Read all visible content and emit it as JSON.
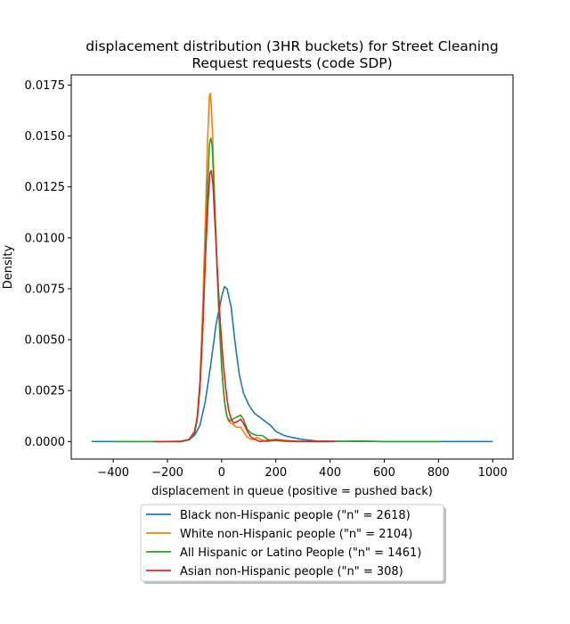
{
  "chart_data": {
    "type": "line",
    "title_lines": [
      "displacement distribution (3HR buckets) for Street Cleaning",
      "Request requests (code SDP)"
    ],
    "xlabel": "displacement in queue (positive = pushed back)",
    "ylabel": "Density",
    "xlim": [
      -555,
      1075
    ],
    "ylim": [
      -0.00086,
      0.018
    ],
    "x_ticks": [
      -400,
      -200,
      0,
      200,
      400,
      600,
      800,
      1000
    ],
    "x_tick_labels": [
      "−400",
      "−200",
      "0",
      "200",
      "400",
      "600",
      "800",
      "1000"
    ],
    "y_ticks": [
      0.0,
      0.0025,
      0.005,
      0.0075,
      0.01,
      0.0125,
      0.015,
      0.0175
    ],
    "y_tick_labels": [
      "0.0000",
      "0.0025",
      "0.0050",
      "0.0075",
      "0.0100",
      "0.0125",
      "0.0150",
      "0.0175"
    ],
    "grid": false,
    "legend_position": "bottom-center-outside",
    "series": [
      {
        "name": "Black non-Hispanic people (\"n\" = 2618)",
        "color": "#1f77b4",
        "points": [
          [
            -480,
            0
          ],
          [
            -200,
            0
          ],
          [
            -150,
            2e-05
          ],
          [
            -120,
            0.0001
          ],
          [
            -100,
            0.0003
          ],
          [
            -80,
            0.0008
          ],
          [
            -60,
            0.002
          ],
          [
            -40,
            0.0038
          ],
          [
            -20,
            0.0058
          ],
          [
            0,
            0.0071
          ],
          [
            10,
            0.0076
          ],
          [
            20,
            0.0075
          ],
          [
            35,
            0.0066
          ],
          [
            50,
            0.0048
          ],
          [
            65,
            0.0033
          ],
          [
            80,
            0.0024
          ],
          [
            100,
            0.0018
          ],
          [
            120,
            0.0014
          ],
          [
            150,
            0.0011
          ],
          [
            180,
            0.0008
          ],
          [
            200,
            0.0005
          ],
          [
            230,
            0.0003
          ],
          [
            260,
            0.0002
          ],
          [
            300,
            0.0001
          ],
          [
            350,
            3e-05
          ],
          [
            450,
            1e-05
          ],
          [
            600,
            0
          ],
          [
            1000,
            0
          ]
        ]
      },
      {
        "name": "White non-Hispanic people (\"n\" = 2104)",
        "color": "#ff7f0e",
        "points": [
          [
            -250,
            0
          ],
          [
            -150,
            0
          ],
          [
            -120,
            0.0001
          ],
          [
            -100,
            0.0004
          ],
          [
            -90,
            0.0012
          ],
          [
            -80,
            0.003
          ],
          [
            -70,
            0.0065
          ],
          [
            -60,
            0.011
          ],
          [
            -52,
            0.0148
          ],
          [
            -45,
            0.017
          ],
          [
            -42,
            0.0171
          ],
          [
            -38,
            0.0165
          ],
          [
            -32,
            0.0145
          ],
          [
            -25,
            0.0115
          ],
          [
            -15,
            0.008
          ],
          [
            -5,
            0.005
          ],
          [
            5,
            0.0028
          ],
          [
            15,
            0.0015
          ],
          [
            25,
            0.001
          ],
          [
            35,
            0.0009
          ],
          [
            45,
            0.0008
          ],
          [
            55,
            0.0007
          ],
          [
            70,
            0.0007
          ],
          [
            80,
            0.0005
          ],
          [
            95,
            0.0002
          ],
          [
            110,
            0.0001
          ],
          [
            120,
            0.0001
          ],
          [
            130,
            0.0002
          ],
          [
            145,
            0.0001
          ],
          [
            165,
            0
          ],
          [
            200,
            5e-05
          ],
          [
            230,
            0
          ],
          [
            400,
            0
          ]
        ]
      },
      {
        "name": "All Hispanic or Latino People (\"n\" = 1461)",
        "color": "#2ca02c",
        "points": [
          [
            -400,
            0
          ],
          [
            -150,
            0
          ],
          [
            -120,
            0.0001
          ],
          [
            -100,
            0.0004
          ],
          [
            -90,
            0.0011
          ],
          [
            -80,
            0.0026
          ],
          [
            -70,
            0.0055
          ],
          [
            -60,
            0.0092
          ],
          [
            -52,
            0.0125
          ],
          [
            -45,
            0.0146
          ],
          [
            -40,
            0.0149
          ],
          [
            -35,
            0.0145
          ],
          [
            -28,
            0.0125
          ],
          [
            -20,
            0.0095
          ],
          [
            -10,
            0.0062
          ],
          [
            0,
            0.0036
          ],
          [
            10,
            0.002
          ],
          [
            20,
            0.0012
          ],
          [
            30,
            0.001
          ],
          [
            40,
            0.0011
          ],
          [
            55,
            0.0012
          ],
          [
            70,
            0.0013
          ],
          [
            80,
            0.0011
          ],
          [
            95,
            0.0006
          ],
          [
            110,
            0.0004
          ],
          [
            130,
            0.0003
          ],
          [
            150,
            0.0003
          ],
          [
            170,
            0.0001
          ],
          [
            190,
            5e-05
          ],
          [
            220,
            5e-05
          ],
          [
            260,
            3e-05
          ],
          [
            330,
            0
          ],
          [
            400,
            0
          ],
          [
            500,
            3e-05
          ],
          [
            600,
            0
          ],
          [
            810,
            0
          ]
        ]
      },
      {
        "name": "Asian non-Hispanic people (\"n\" = 308)",
        "color": "#d62728",
        "points": [
          [
            -250,
            0
          ],
          [
            -150,
            0
          ],
          [
            -120,
            0.0001
          ],
          [
            -100,
            0.0005
          ],
          [
            -90,
            0.0012
          ],
          [
            -80,
            0.0028
          ],
          [
            -70,
            0.0055
          ],
          [
            -60,
            0.009
          ],
          [
            -50,
            0.0118
          ],
          [
            -43,
            0.0132
          ],
          [
            -38,
            0.0133
          ],
          [
            -32,
            0.0126
          ],
          [
            -25,
            0.0108
          ],
          [
            -15,
            0.0082
          ],
          [
            -5,
            0.0058
          ],
          [
            5,
            0.004
          ],
          [
            15,
            0.0026
          ],
          [
            25,
            0.0016
          ],
          [
            35,
            0.0011
          ],
          [
            45,
            0.0009
          ],
          [
            60,
            0.001
          ],
          [
            70,
            0.0011
          ],
          [
            80,
            0.0009
          ],
          [
            95,
            0.0005
          ],
          [
            110,
            0.0002
          ],
          [
            125,
            0.0001
          ],
          [
            140,
            0
          ],
          [
            170,
            5e-05
          ],
          [
            200,
            0.0001
          ],
          [
            230,
            5e-05
          ],
          [
            280,
            0
          ],
          [
            420,
            0
          ]
        ]
      }
    ]
  }
}
